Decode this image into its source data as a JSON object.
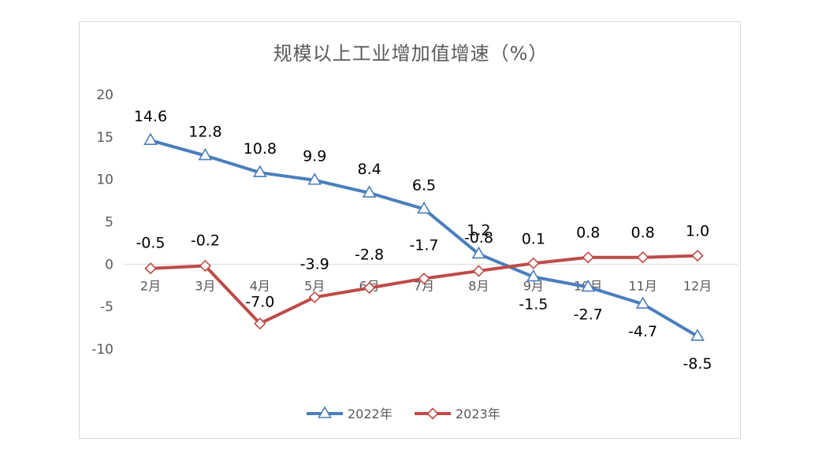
{
  "chart_data": {
    "type": "line",
    "title": "规模以上工业增加值增速（%）",
    "categories": [
      "2月",
      "3月",
      "4月",
      "5月",
      "6月",
      "7月",
      "8月",
      "9月",
      "10月",
      "11月",
      "12月"
    ],
    "ylim": [
      -10,
      20
    ],
    "yticks": [
      "20",
      "15",
      "10",
      "5",
      "0",
      "-5",
      "-10"
    ],
    "grid": false,
    "legend_position": "bottom",
    "series": [
      {
        "name": "2022年",
        "color": "#4a7ebb",
        "marker": "triangle",
        "values": [
          14.6,
          12.8,
          10.8,
          9.9,
          8.4,
          6.5,
          1.2,
          -1.5,
          -2.7,
          -4.7,
          -8.5
        ],
        "labels": [
          "14.6",
          "12.8",
          "10.8",
          "9.9",
          "8.4",
          "6.5",
          "1.2",
          "-1.5",
          "-2.7",
          "-4.7",
          "-8.5"
        ]
      },
      {
        "name": "2023年",
        "color": "#be4b48",
        "marker": "diamond",
        "values": [
          -0.5,
          -0.2,
          -7.0,
          -3.9,
          -2.8,
          -1.7,
          -0.8,
          0.1,
          0.8,
          0.8,
          1.0
        ],
        "labels": [
          "-0.5",
          "-0.2",
          "-7.0",
          "-3.9",
          "-2.8",
          "-1.7",
          "-0.8",
          "0.1",
          "0.8",
          "0.8",
          "1.0"
        ]
      }
    ]
  }
}
